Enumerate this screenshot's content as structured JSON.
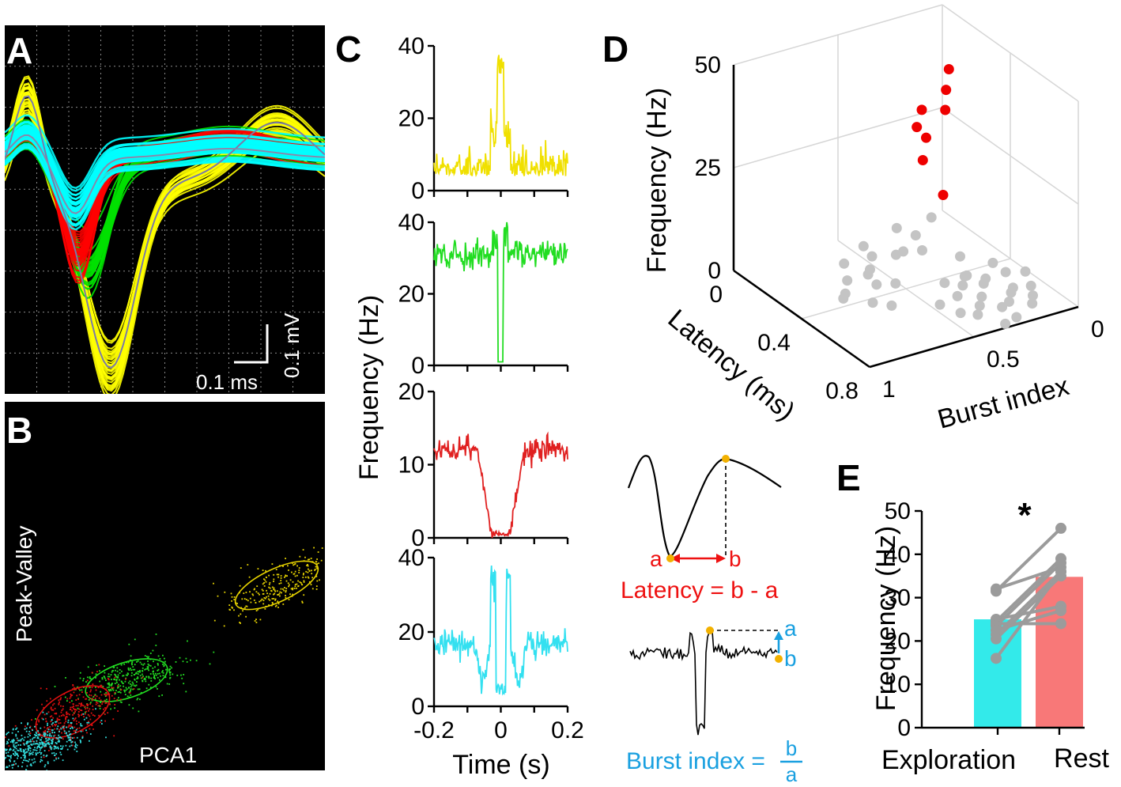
{
  "panels": {
    "A": {
      "letter": "A",
      "scale_x_label": "0.1 ms",
      "scale_y_label": "0.1 mV",
      "colors": {
        "yellow": "#ffff00",
        "green": "#00e000",
        "red": "#ff0000",
        "cyan": "#00ffff",
        "background": "#000000"
      }
    },
    "B": {
      "letter": "B",
      "xlabel": "PCA1",
      "ylabel": "Peak-Valley",
      "clusters": [
        {
          "name": "yellow",
          "color": "#e6d200"
        },
        {
          "name": "green",
          "color": "#22dd22"
        },
        {
          "name": "red",
          "color": "#e01010"
        },
        {
          "name": "cyan",
          "color": "#33dddd"
        }
      ]
    },
    "C": {
      "letter": "C",
      "xlabel": "Time (s)",
      "ylabel": "Frequency (Hz)",
      "xticks": [
        "-0.2",
        "0",
        "0.2"
      ],
      "subplots": [
        {
          "name": "yellow",
          "color": "#f0e000",
          "yticks": [
            "0",
            "20",
            "40"
          ],
          "ymax": 40,
          "baseline": 4,
          "peak": 38
        },
        {
          "name": "green",
          "color": "#22dd22",
          "yticks": [
            "0",
            "20",
            "40"
          ],
          "ymax": 40,
          "baseline": 31,
          "trough": 1
        },
        {
          "name": "red",
          "color": "#e02020",
          "yticks": [
            "0",
            "10",
            "20"
          ],
          "ymax": 20,
          "baseline": 12,
          "trough": 0.3
        },
        {
          "name": "cyan",
          "color": "#33e0f0",
          "yticks": [
            "0",
            "20",
            "40"
          ],
          "ymax": 40,
          "baseline": 17,
          "peak": 38,
          "trough": 3
        }
      ]
    },
    "D": {
      "letter": "D",
      "zlabel": "Frequency (Hz)",
      "zticks": [
        "0",
        "25",
        "50"
      ],
      "xlabel": "Latency (ms)",
      "xticks": [
        "0",
        "0.4",
        "0.8"
      ],
      "ylabel": "Burst index",
      "yticks": [
        "1",
        "0.5",
        "0"
      ],
      "red_color": "#ee0000",
      "gray_color": "#c4c4c4"
    },
    "schematic": {
      "latency_a": "a",
      "latency_b": "b",
      "latency_formula": "Latency = b - a",
      "burst_a": "a",
      "burst_b": "b",
      "burst_formula_text": "Burst index =",
      "burst_frac_num": "b",
      "burst_frac_den": "a",
      "red_color": "#ee1111",
      "blue_color": "#1aa0e0",
      "dot_color": "#f2b100"
    },
    "E": {
      "letter": "E",
      "asterisk": "*",
      "ylabel": "Frequency (Hz)",
      "yticks": [
        "0",
        "10",
        "20",
        "30",
        "40",
        "50"
      ]
    }
  },
  "chart_data": [
    {
      "type": "bar",
      "panel": "E",
      "categories": [
        "Exploration",
        "Rest"
      ],
      "values": [
        25,
        34.8
      ],
      "colors": [
        "#33eaea",
        "#f87878"
      ],
      "ylim": [
        0,
        50
      ],
      "ylabel": "Frequency (Hz)",
      "significance": "*",
      "paired_lines": [
        [
          32,
          37
        ],
        [
          31.5,
          46
        ],
        [
          25,
          28
        ],
        [
          24.5,
          39
        ],
        [
          24,
          24
        ],
        [
          23.5,
          38
        ],
        [
          22.5,
          27
        ],
        [
          21.5,
          36
        ],
        [
          20.5,
          35
        ],
        [
          16,
          36
        ]
      ],
      "line_color": "#9b9b9b"
    },
    {
      "type": "scatter",
      "panel": "D",
      "title": "",
      "xlabel": "Latency (ms)",
      "ylabel": "Burst index",
      "zlabel": "Frequency (Hz)",
      "xlim": [
        0,
        0.8
      ],
      "ylim": [
        0,
        1
      ],
      "zlim": [
        0,
        50
      ],
      "series": [
        {
          "name": "red",
          "color": "#ee0000",
          "points": [
            [
              0.1,
              0.05,
              38
            ],
            [
              0.12,
              0.08,
              34
            ],
            [
              0.14,
              0.1,
              30
            ],
            [
              0.1,
              0.18,
              30
            ],
            [
              0.12,
              0.22,
              27
            ],
            [
              0.15,
              0.2,
              25
            ],
            [
              0.18,
              0.24,
              21
            ],
            [
              0.25,
              0.2,
              14
            ]
          ]
        },
        {
          "name": "gray",
          "color": "#c4c4c4",
          "points": [
            [
              0.15,
              0.5,
              3
            ],
            [
              0.2,
              0.5,
              2
            ],
            [
              0.25,
              0.55,
              1
            ],
            [
              0.3,
              0.6,
              2
            ],
            [
              0.22,
              0.65,
              3
            ],
            [
              0.3,
              0.7,
              2
            ],
            [
              0.35,
              0.6,
              1
            ],
            [
              0.4,
              0.55,
              2
            ],
            [
              0.35,
              0.75,
              1
            ],
            [
              0.4,
              0.8,
              2
            ],
            [
              0.45,
              0.7,
              1
            ],
            [
              0.5,
              0.65,
              1
            ],
            [
              0.28,
              0.45,
              4
            ],
            [
              0.1,
              0.3,
              3
            ],
            [
              0.15,
              0.25,
              2
            ],
            [
              0.2,
              0.35,
              1
            ],
            [
              0.12,
              0.15,
              4
            ],
            [
              0.25,
              0.3,
              2
            ],
            [
              0.55,
              0.25,
              2
            ],
            [
              0.6,
              0.3,
              1
            ],
            [
              0.55,
              0.35,
              3
            ],
            [
              0.65,
              0.2,
              2
            ],
            [
              0.6,
              0.15,
              1
            ],
            [
              0.7,
              0.25,
              2
            ],
            [
              0.5,
              0.2,
              1
            ],
            [
              0.65,
              0.35,
              1
            ],
            [
              0.72,
              0.3,
              2
            ],
            [
              0.58,
              0.4,
              2
            ],
            [
              0.5,
              0.3,
              3
            ],
            [
              0.45,
              0.25,
              1
            ],
            [
              0.68,
              0.12,
              1
            ],
            [
              0.75,
              0.18,
              2
            ],
            [
              0.62,
              0.08,
              1
            ],
            [
              0.52,
              0.12,
              2
            ],
            [
              0.7,
              0.4,
              1
            ],
            [
              0.78,
              0.28,
              1
            ],
            [
              0.8,
              0.35,
              1
            ],
            [
              0.48,
              0.38,
              2
            ],
            [
              0.42,
              0.1,
              1
            ],
            [
              0.55,
              0.05,
              2
            ],
            [
              0.66,
              0.45,
              1
            ],
            [
              0.6,
              0.5,
              2
            ],
            [
              0.35,
              0.2,
              2
            ]
          ]
        }
      ]
    }
  ]
}
